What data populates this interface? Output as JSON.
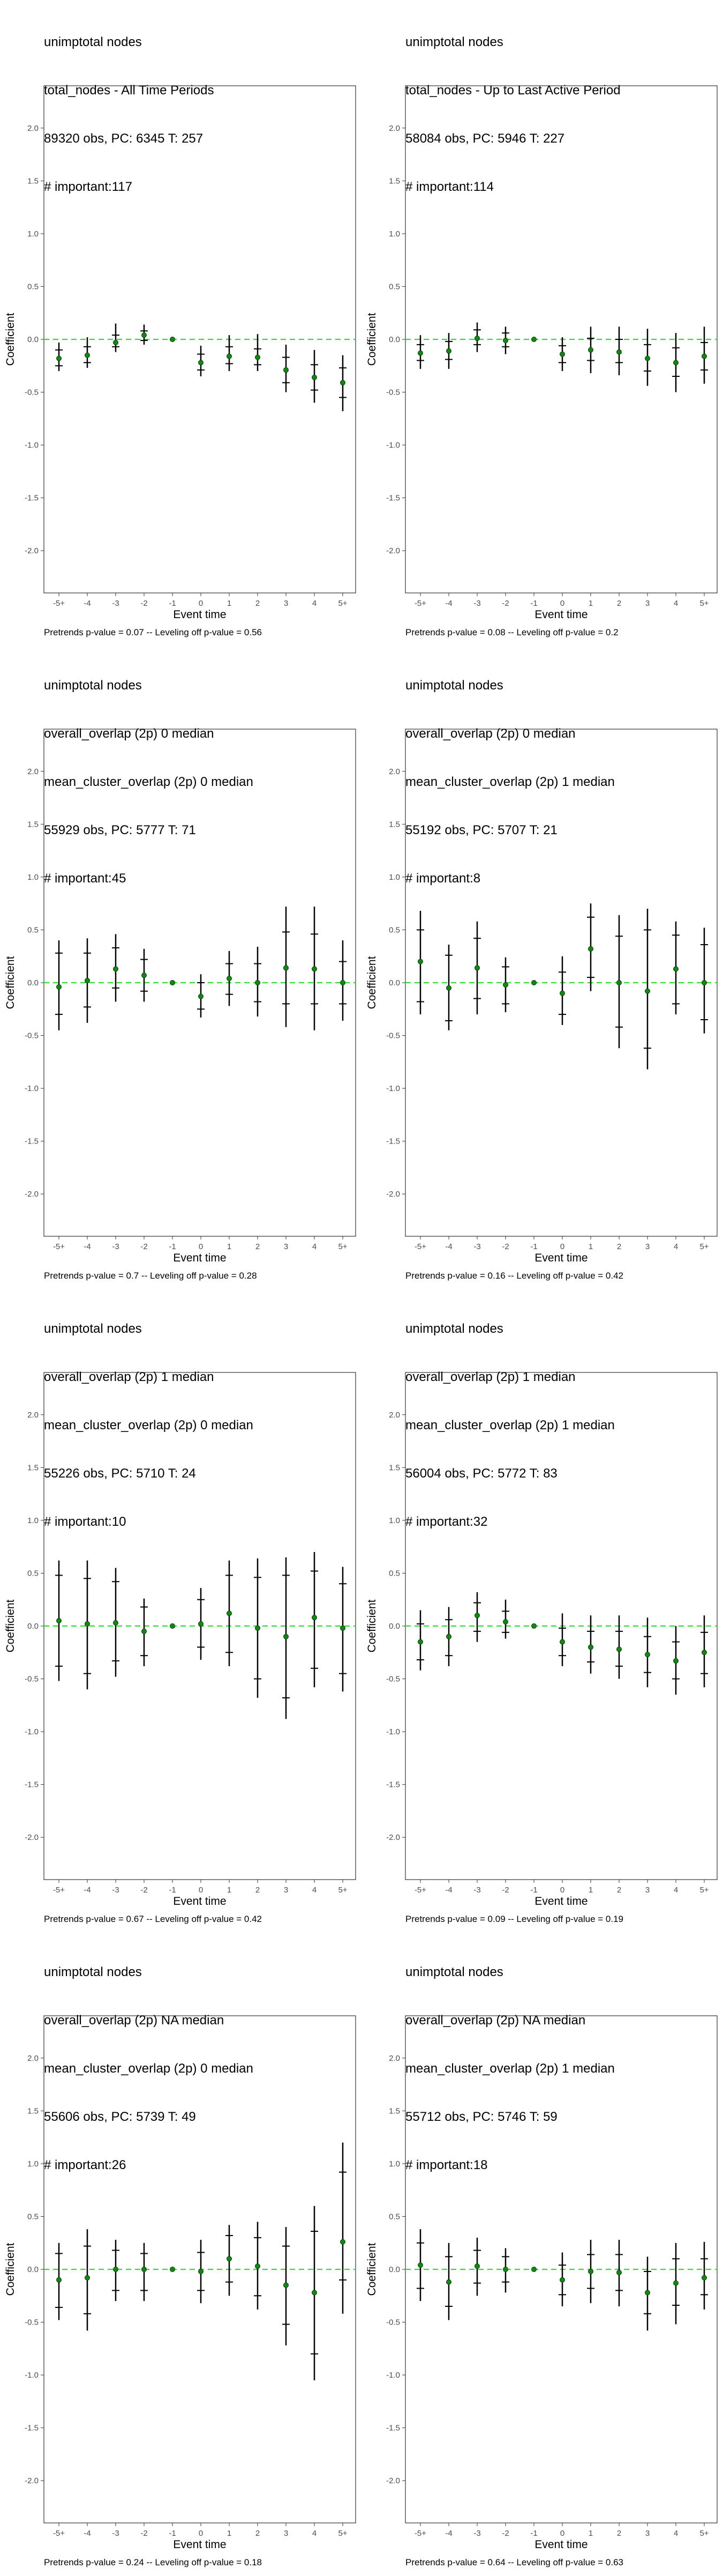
{
  "chart_data": [
    {
      "type": "scatter",
      "title_lines": [
        "unimptotal nodes",
        "total_nodes - All Time Periods",
        "89320 obs, PC: 6345 T: 257",
        "# important:117"
      ],
      "xlabel": "Event time",
      "ylabel": "Coefficient",
      "categories": [
        "-5+",
        "-4",
        "-3",
        "-2",
        "-1",
        "0",
        "1",
        "2",
        "3",
        "4",
        "5+"
      ],
      "ylim": [
        -2.4,
        2.4
      ],
      "yticks": [
        2.0,
        1.5,
        1.0,
        0.5,
        0.0,
        -0.5,
        -1.0,
        -1.5,
        -2.0
      ],
      "ytick_labels": [
        "2.0",
        "1.5",
        "1.0",
        "0.5",
        "0.0",
        "-0.5",
        "-1.0",
        "-1.5",
        "-2.0"
      ],
      "reference_line": 0,
      "series": [
        {
          "estimate": [
            -0.18,
            -0.15,
            -0.03,
            0.04,
            0.0,
            -0.22,
            -0.16,
            -0.17,
            -0.29,
            -0.36,
            -0.41
          ],
          "ci_lo": [
            -0.3,
            -0.27,
            -0.12,
            -0.05,
            0.0,
            -0.35,
            -0.3,
            -0.3,
            -0.5,
            -0.6,
            -0.68
          ],
          "ci_hi": [
            -0.03,
            0.02,
            0.15,
            0.14,
            0.0,
            -0.06,
            0.04,
            0.05,
            -0.05,
            -0.1,
            -0.15
          ],
          "inner_lo": [
            -0.25,
            -0.22,
            -0.07,
            -0.01,
            0.0,
            -0.29,
            -0.23,
            -0.24,
            -0.41,
            -0.48,
            -0.55
          ],
          "inner_hi": [
            -0.1,
            -0.07,
            0.04,
            0.08,
            0.0,
            -0.14,
            -0.07,
            -0.09,
            -0.17,
            -0.24,
            -0.27
          ]
        }
      ],
      "footer": "Pretrends p-value = 0.07 -- Leveling off p-value = 0.56"
    },
    {
      "type": "scatter",
      "title_lines": [
        "unimptotal nodes",
        "total_nodes - Up to Last Active Period",
        "58084 obs, PC: 5946 T: 227",
        "# important:114"
      ],
      "xlabel": "Event time",
      "ylabel": "Coefficient",
      "categories": [
        "-5+",
        "-4",
        "-3",
        "-2",
        "-1",
        "0",
        "1",
        "2",
        "3",
        "4",
        "5+"
      ],
      "ylim": [
        -2.4,
        2.4
      ],
      "yticks": [
        2.0,
        1.5,
        1.0,
        0.5,
        0.0,
        -0.5,
        -1.0,
        -1.5,
        -2.0
      ],
      "ytick_labels": [
        "2.0",
        "1.5",
        "1.0",
        "0.5",
        "0.0",
        "-0.5",
        "-1.0",
        "-1.5",
        "-2.0"
      ],
      "reference_line": 0,
      "series": [
        {
          "estimate": [
            -0.13,
            -0.11,
            0.01,
            -0.01,
            0.0,
            -0.14,
            -0.1,
            -0.12,
            -0.18,
            -0.22,
            -0.16
          ],
          "ci_lo": [
            -0.28,
            -0.28,
            -0.12,
            -0.14,
            0.0,
            -0.3,
            -0.32,
            -0.34,
            -0.44,
            -0.5,
            -0.42
          ],
          "ci_hi": [
            0.04,
            0.06,
            0.16,
            0.12,
            0.0,
            0.02,
            0.12,
            0.12,
            0.1,
            0.06,
            0.12
          ],
          "inner_lo": [
            -0.2,
            -0.19,
            -0.05,
            -0.07,
            0.0,
            -0.22,
            -0.2,
            -0.22,
            -0.3,
            -0.35,
            -0.29
          ],
          "inner_hi": [
            -0.05,
            -0.02,
            0.09,
            0.06,
            0.0,
            -0.06,
            0.01,
            0.0,
            -0.05,
            -0.08,
            -0.03
          ]
        }
      ],
      "footer": "Pretrends p-value = 0.08 -- Leveling off p-value = 0.2"
    },
    {
      "type": "scatter",
      "title_lines": [
        "unimptotal nodes",
        "overall_overlap (2p) 0 median",
        "mean_cluster_overlap (2p) 0 median",
        "55929 obs, PC: 5777 T: 71",
        "# important:45"
      ],
      "xlabel": "Event time",
      "ylabel": "Coefficient",
      "categories": [
        "-5+",
        "-4",
        "-3",
        "-2",
        "-1",
        "0",
        "1",
        "2",
        "3",
        "4",
        "5+"
      ],
      "ylim": [
        -2.4,
        2.4
      ],
      "yticks": [
        2.0,
        1.5,
        1.0,
        0.5,
        0.0,
        -0.5,
        -1.0,
        -1.5,
        -2.0
      ],
      "ytick_labels": [
        "2.0",
        "1.5",
        "1.0",
        "0.5",
        "0.0",
        "-0.5",
        "-1.0",
        "-1.5",
        "-2.0"
      ],
      "reference_line": 0,
      "series": [
        {
          "estimate": [
            -0.04,
            0.02,
            0.13,
            0.07,
            0.0,
            -0.13,
            0.04,
            0.0,
            0.14,
            0.13,
            0.0
          ],
          "ci_lo": [
            -0.45,
            -0.38,
            -0.18,
            -0.18,
            0.0,
            -0.33,
            -0.22,
            -0.32,
            -0.42,
            -0.45,
            -0.36
          ],
          "ci_hi": [
            0.4,
            0.42,
            0.46,
            0.32,
            0.0,
            0.08,
            0.3,
            0.34,
            0.72,
            0.72,
            0.4
          ],
          "inner_lo": [
            -0.3,
            -0.23,
            -0.05,
            -0.08,
            0.0,
            -0.25,
            -0.11,
            -0.18,
            -0.2,
            -0.2,
            -0.2
          ],
          "inner_hi": [
            0.28,
            0.28,
            0.33,
            0.22,
            0.0,
            0.0,
            0.18,
            0.18,
            0.48,
            0.46,
            0.2
          ]
        }
      ],
      "footer": "Pretrends p-value = 0.7 -- Leveling off p-value = 0.28"
    },
    {
      "type": "scatter",
      "title_lines": [
        "unimptotal nodes",
        "overall_overlap (2p) 0 median",
        "mean_cluster_overlap (2p) 1 median",
        "55192 obs, PC: 5707 T: 21",
        "# important:8"
      ],
      "xlabel": "Event time",
      "ylabel": "Coefficient",
      "categories": [
        "-5+",
        "-4",
        "-3",
        "-2",
        "-1",
        "0",
        "1",
        "2",
        "3",
        "4",
        "5+"
      ],
      "ylim": [
        -2.4,
        2.4
      ],
      "yticks": [
        2.0,
        1.5,
        1.0,
        0.5,
        0.0,
        -0.5,
        -1.0,
        -1.5,
        -2.0
      ],
      "ytick_labels": [
        "2.0",
        "1.5",
        "1.0",
        "0.5",
        "0.0",
        "-0.5",
        "-1.0",
        "-1.5",
        "-2.0"
      ],
      "reference_line": 0,
      "series": [
        {
          "estimate": [
            0.2,
            -0.05,
            0.14,
            -0.02,
            0.0,
            -0.1,
            0.32,
            0.0,
            -0.08,
            0.13,
            0.0
          ],
          "ci_lo": [
            -0.3,
            -0.45,
            -0.3,
            -0.28,
            0.0,
            -0.4,
            -0.08,
            -0.62,
            -0.82,
            -0.3,
            -0.48
          ],
          "ci_hi": [
            0.68,
            0.36,
            0.58,
            0.24,
            0.0,
            0.25,
            0.75,
            0.64,
            0.7,
            0.58,
            0.52
          ],
          "inner_lo": [
            -0.18,
            -0.36,
            -0.15,
            -0.2,
            0.0,
            -0.3,
            0.05,
            -0.42,
            -0.62,
            -0.2,
            -0.35
          ],
          "inner_hi": [
            0.5,
            0.26,
            0.42,
            0.15,
            0.0,
            0.1,
            0.62,
            0.44,
            0.5,
            0.45,
            0.36
          ]
        }
      ],
      "footer": "Pretrends p-value = 0.16 -- Leveling off p-value = 0.42"
    },
    {
      "type": "scatter",
      "title_lines": [
        "unimptotal nodes",
        "overall_overlap (2p) 1 median",
        "mean_cluster_overlap (2p) 0 median",
        "55226 obs, PC: 5710 T: 24",
        "# important:10"
      ],
      "xlabel": "Event time",
      "ylabel": "Coefficient",
      "categories": [
        "-5+",
        "-4",
        "-3",
        "-2",
        "-1",
        "0",
        "1",
        "2",
        "3",
        "4",
        "5+"
      ],
      "ylim": [
        -2.4,
        2.4
      ],
      "yticks": [
        2.0,
        1.5,
        1.0,
        0.5,
        0.0,
        -0.5,
        -1.0,
        -1.5,
        -2.0
      ],
      "ytick_labels": [
        "2.0",
        "1.5",
        "1.0",
        "0.5",
        "0.0",
        "-0.5",
        "-1.0",
        "-1.5",
        "-2.0"
      ],
      "reference_line": 0,
      "series": [
        {
          "estimate": [
            0.05,
            0.02,
            0.03,
            -0.05,
            0.0,
            0.02,
            0.12,
            -0.02,
            -0.1,
            0.08,
            -0.02
          ],
          "ci_lo": [
            -0.52,
            -0.6,
            -0.48,
            -0.38,
            0.0,
            -0.32,
            -0.38,
            -0.68,
            -0.88,
            -0.58,
            -0.62
          ],
          "ci_hi": [
            0.62,
            0.62,
            0.55,
            0.26,
            0.0,
            0.36,
            0.62,
            0.64,
            0.65,
            0.7,
            0.56
          ],
          "inner_lo": [
            -0.38,
            -0.45,
            -0.33,
            -0.28,
            0.0,
            -0.2,
            -0.25,
            -0.5,
            -0.68,
            -0.4,
            -0.45
          ],
          "inner_hi": [
            0.48,
            0.45,
            0.42,
            0.18,
            0.0,
            0.25,
            0.48,
            0.46,
            0.48,
            0.52,
            0.4
          ]
        }
      ],
      "footer": "Pretrends p-value = 0.67 -- Leveling off p-value = 0.42"
    },
    {
      "type": "scatter",
      "title_lines": [
        "unimptotal nodes",
        "overall_overlap (2p) 1 median",
        "mean_cluster_overlap (2p) 1 median",
        "56004 obs, PC: 5772 T: 83",
        "# important:32"
      ],
      "xlabel": "Event time",
      "ylabel": "Coefficient",
      "categories": [
        "-5+",
        "-4",
        "-3",
        "-2",
        "-1",
        "0",
        "1",
        "2",
        "3",
        "4",
        "5+"
      ],
      "ylim": [
        -2.4,
        2.4
      ],
      "yticks": [
        2.0,
        1.5,
        1.0,
        0.5,
        0.0,
        -0.5,
        -1.0,
        -1.5,
        -2.0
      ],
      "ytick_labels": [
        "2.0",
        "1.5",
        "1.0",
        "0.5",
        "0.0",
        "-0.5",
        "-1.0",
        "-1.5",
        "-2.0"
      ],
      "reference_line": 0,
      "series": [
        {
          "estimate": [
            -0.15,
            -0.1,
            0.1,
            0.04,
            0.0,
            -0.15,
            -0.2,
            -0.22,
            -0.27,
            -0.33,
            -0.25
          ],
          "ci_lo": [
            -0.42,
            -0.38,
            -0.15,
            -0.12,
            0.0,
            -0.38,
            -0.45,
            -0.5,
            -0.58,
            -0.65,
            -0.58
          ],
          "ci_hi": [
            0.15,
            0.18,
            0.32,
            0.25,
            0.0,
            0.12,
            0.1,
            0.1,
            0.08,
            0.0,
            0.1
          ],
          "inner_lo": [
            -0.32,
            -0.28,
            -0.05,
            -0.06,
            0.0,
            -0.28,
            -0.34,
            -0.38,
            -0.44,
            -0.5,
            -0.45
          ],
          "inner_hi": [
            0.02,
            0.06,
            0.22,
            0.14,
            0.0,
            -0.02,
            -0.05,
            -0.05,
            -0.1,
            -0.15,
            -0.06
          ]
        }
      ],
      "footer": "Pretrends p-value = 0.09 -- Leveling off p-value = 0.19"
    },
    {
      "type": "scatter",
      "title_lines": [
        "unimptotal nodes",
        "overall_overlap (2p) NA median",
        "mean_cluster_overlap (2p) 0 median",
        "55606 obs, PC: 5739 T: 49",
        "# important:26"
      ],
      "xlabel": "Event time",
      "ylabel": "Coefficient",
      "categories": [
        "-5+",
        "-4",
        "-3",
        "-2",
        "-1",
        "0",
        "1",
        "2",
        "3",
        "4",
        "5+"
      ],
      "ylim": [
        -2.4,
        2.4
      ],
      "yticks": [
        2.0,
        1.5,
        1.0,
        0.5,
        0.0,
        -0.5,
        -1.0,
        -1.5,
        -2.0
      ],
      "ytick_labels": [
        "2.0",
        "1.5",
        "1.0",
        "0.5",
        "0.0",
        "-0.5",
        "-1.0",
        "-1.5",
        "-2.0"
      ],
      "reference_line": 0,
      "series": [
        {
          "estimate": [
            -0.1,
            -0.08,
            0.0,
            0.0,
            0.0,
            -0.02,
            0.1,
            0.03,
            -0.15,
            -0.22,
            0.26
          ],
          "ci_lo": [
            -0.48,
            -0.58,
            -0.3,
            -0.3,
            0.0,
            -0.32,
            -0.25,
            -0.38,
            -0.72,
            -1.05,
            -0.42
          ],
          "ci_hi": [
            0.25,
            0.38,
            0.28,
            0.25,
            0.0,
            0.28,
            0.42,
            0.45,
            0.4,
            0.6,
            1.2
          ],
          "inner_lo": [
            -0.36,
            -0.42,
            -0.2,
            -0.2,
            0.0,
            -0.2,
            -0.12,
            -0.25,
            -0.52,
            -0.8,
            -0.1
          ],
          "inner_hi": [
            0.15,
            0.22,
            0.18,
            0.15,
            0.0,
            0.16,
            0.32,
            0.3,
            0.22,
            0.36,
            0.92
          ]
        }
      ],
      "footer": "Pretrends p-value = 0.24 -- Leveling off p-value = 0.18"
    },
    {
      "type": "scatter",
      "title_lines": [
        "unimptotal nodes",
        "overall_overlap (2p) NA median",
        "mean_cluster_overlap (2p) 1 median",
        "55712 obs, PC: 5746 T: 59",
        "# important:18"
      ],
      "xlabel": "Event time",
      "ylabel": "Coefficient",
      "categories": [
        "-5+",
        "-4",
        "-3",
        "-2",
        "-1",
        "0",
        "1",
        "2",
        "3",
        "4",
        "5+"
      ],
      "ylim": [
        -2.4,
        2.4
      ],
      "yticks": [
        2.0,
        1.5,
        1.0,
        0.5,
        0.0,
        -0.5,
        -1.0,
        -1.5,
        -2.0
      ],
      "ytick_labels": [
        "2.0",
        "1.5",
        "1.0",
        "0.5",
        "0.0",
        "-0.5",
        "-1.0",
        "-1.5",
        "-2.0"
      ],
      "reference_line": 0,
      "series": [
        {
          "estimate": [
            0.04,
            -0.12,
            0.03,
            0.0,
            0.0,
            -0.1,
            -0.02,
            -0.03,
            -0.22,
            -0.13,
            -0.08
          ],
          "ci_lo": [
            -0.3,
            -0.48,
            -0.25,
            -0.22,
            0.0,
            -0.35,
            -0.32,
            -0.35,
            -0.58,
            -0.52,
            -0.38
          ],
          "ci_hi": [
            0.38,
            0.25,
            0.3,
            0.2,
            0.0,
            0.16,
            0.28,
            0.28,
            0.12,
            0.25,
            0.26
          ],
          "inner_lo": [
            -0.18,
            -0.35,
            -0.13,
            -0.12,
            0.0,
            -0.24,
            -0.18,
            -0.2,
            -0.42,
            -0.34,
            -0.24
          ],
          "inner_hi": [
            0.25,
            0.12,
            0.18,
            0.12,
            0.0,
            0.04,
            0.14,
            0.14,
            -0.02,
            0.1,
            0.1
          ]
        }
      ],
      "footer": "Pretrends p-value = 0.64 -- Leveling off p-value = 0.63"
    }
  ]
}
